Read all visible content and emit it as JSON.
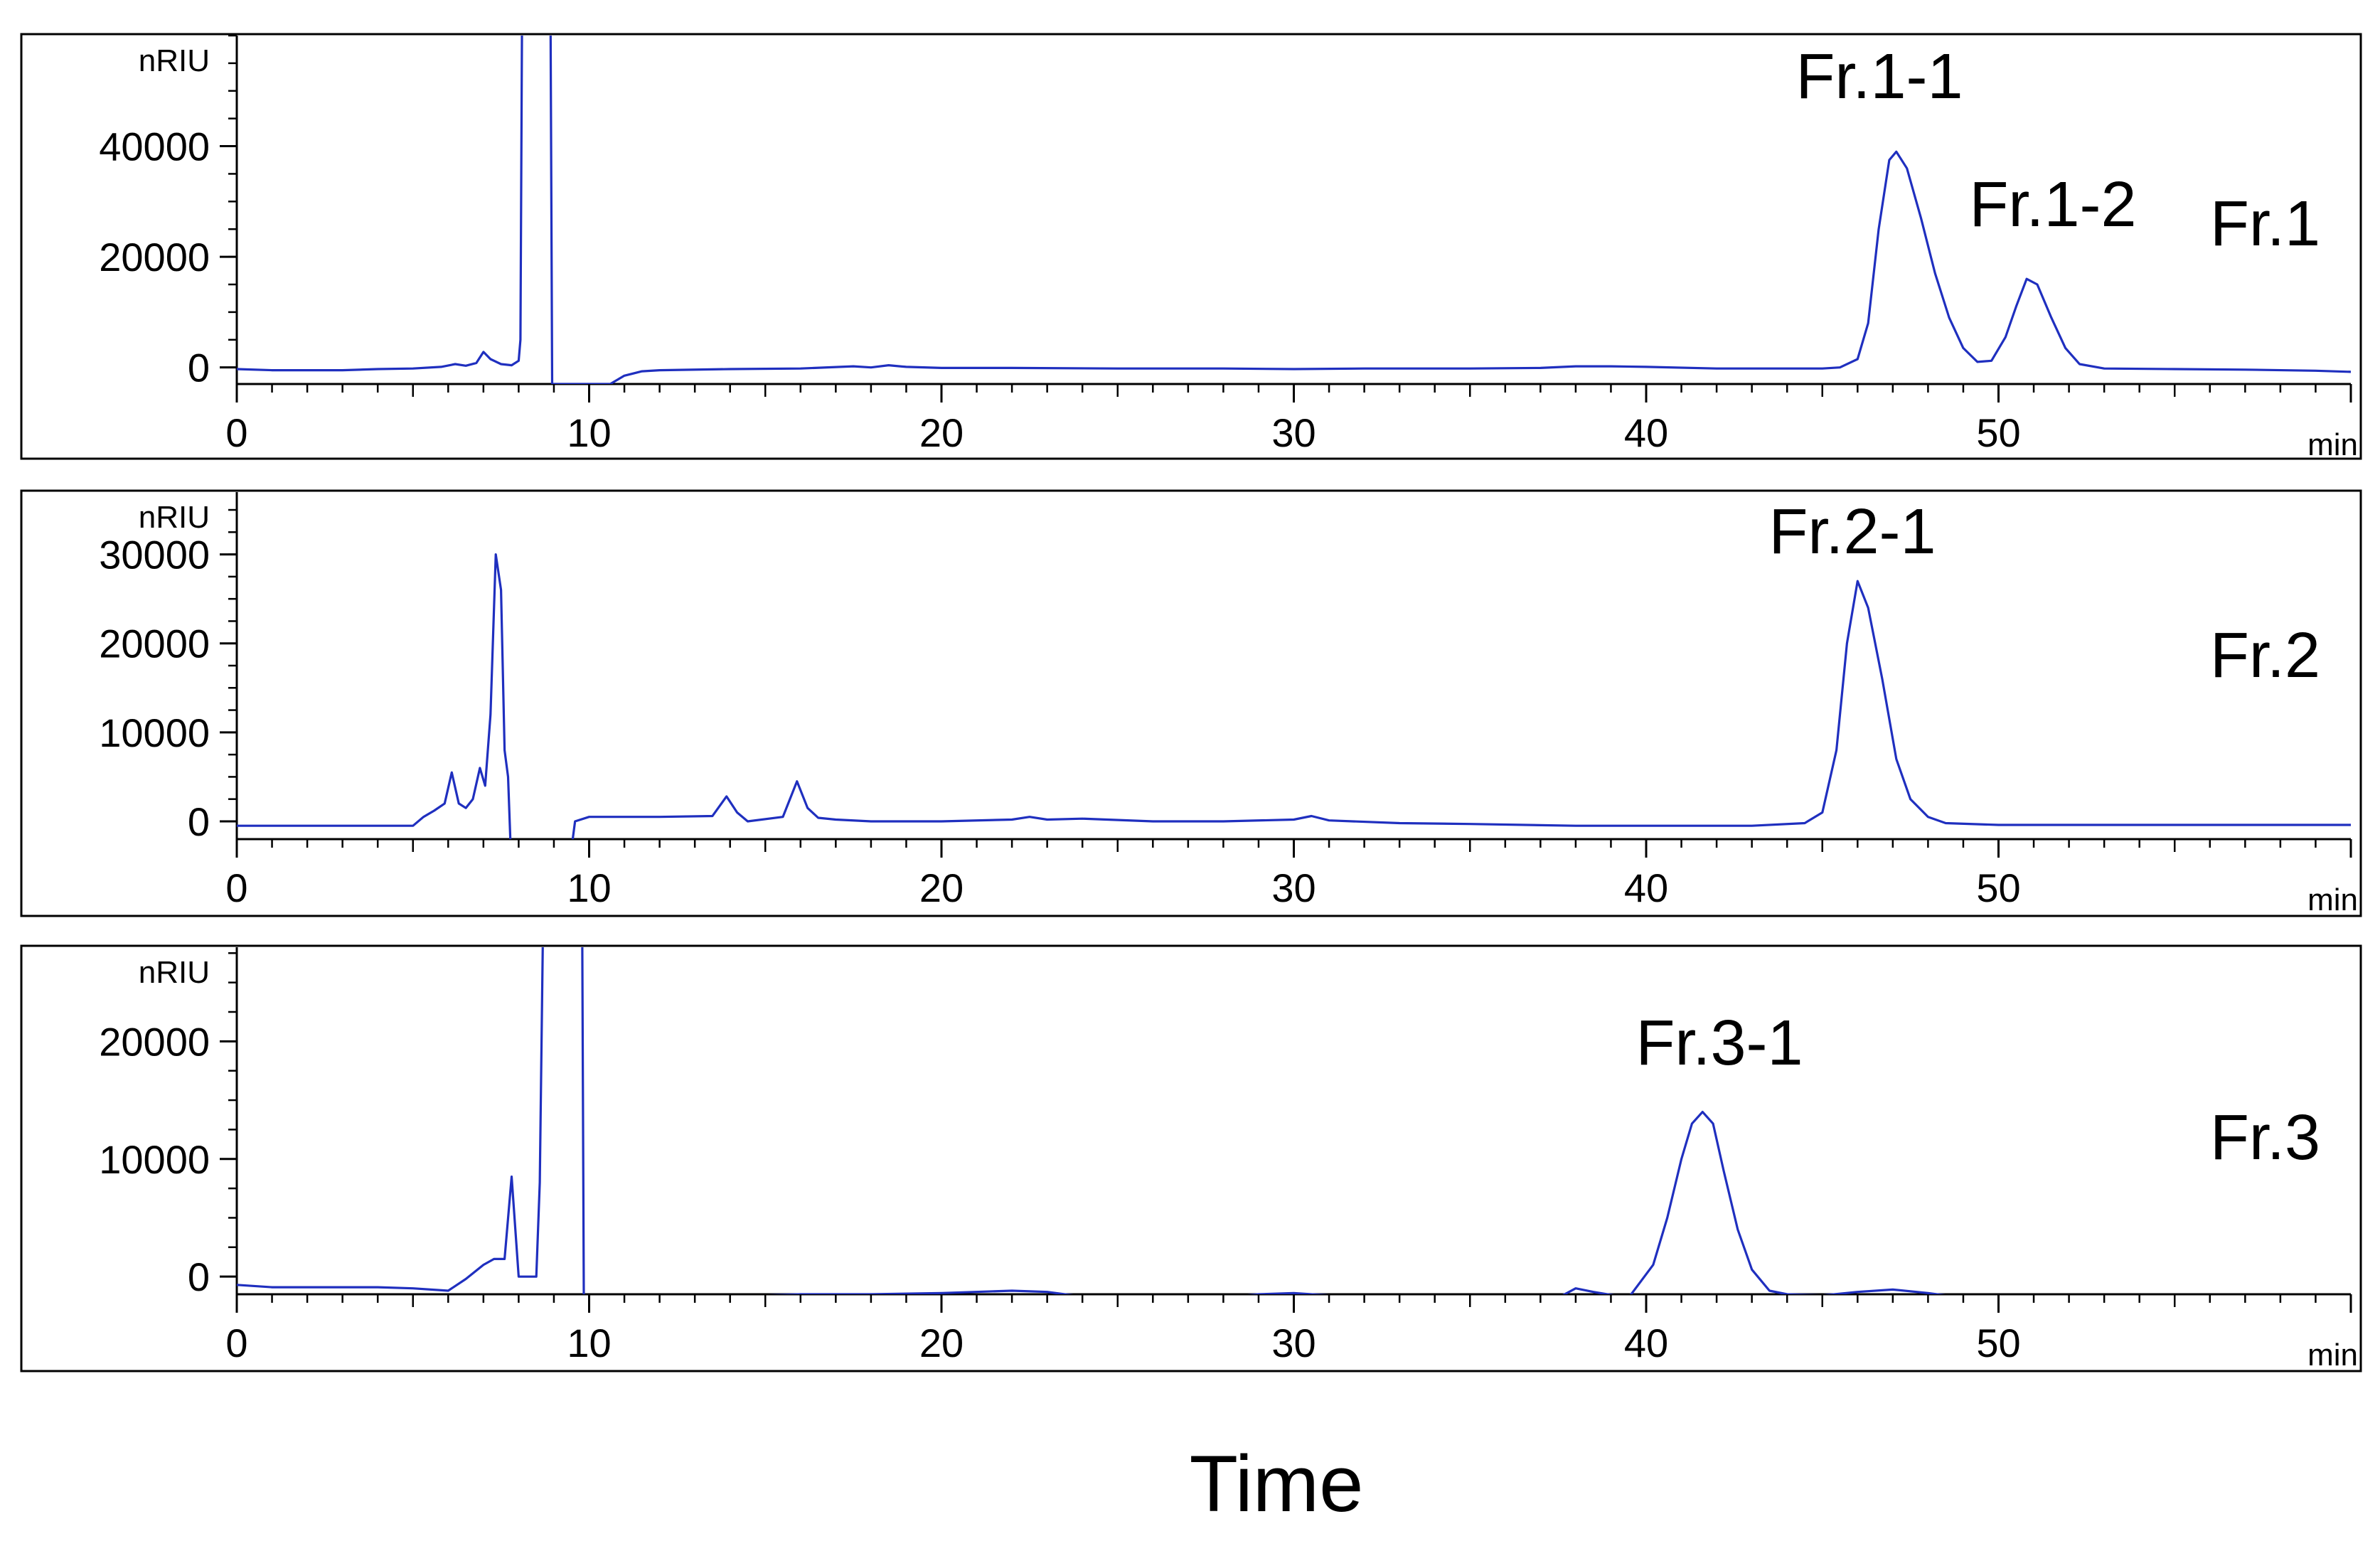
{
  "figure": {
    "xlabel": "Time"
  },
  "colors": {
    "trace": "#1f2fbf",
    "axis": "#000000",
    "frame": "#000000"
  },
  "chart_data": [
    {
      "type": "line",
      "panel_label": "Fr.1",
      "y_unit": "nRIU",
      "x_unit": "min",
      "xlim": [
        0,
        60
      ],
      "ylim": [
        -3000,
        60000
      ],
      "xticks": [
        0,
        10,
        20,
        30,
        40,
        50
      ],
      "yticks": [
        0,
        20000,
        40000
      ],
      "peaks": [
        {
          "label": "Fr.1-1",
          "x": 47.0,
          "y": 39000
        },
        {
          "label": "Fr.1-2",
          "x": 50.7,
          "y": 16000
        }
      ],
      "series": [
        {
          "x": [
            0,
            1,
            3,
            4,
            5,
            5.8,
            6.2,
            6.5,
            6.8,
            7.0,
            7.2,
            7.5,
            7.8,
            8.0,
            8.05,
            8.1,
            8.2,
            8.4,
            8.6,
            8.8,
            8.9,
            8.95,
            9.0,
            9.1,
            9.5,
            10,
            10.6,
            11.0,
            11.5,
            12,
            14,
            16,
            17.5,
            18,
            18.5,
            19,
            20,
            22,
            25,
            28,
            30,
            32,
            35,
            37,
            38,
            39,
            40,
            42,
            44,
            45,
            45.5,
            46,
            46.3,
            46.6,
            46.9,
            47.1,
            47.4,
            47.8,
            48.2,
            48.6,
            49.0,
            49.4,
            49.8,
            50.2,
            50.5,
            50.8,
            51.1,
            51.5,
            51.9,
            52.3,
            53,
            55,
            57,
            59,
            60
          ],
          "y": [
            -300,
            -500,
            -500,
            -300,
            -200,
            100,
            600,
            300,
            800,
            2800,
            1500,
            600,
            400,
            1200,
            5000,
            70000,
            70000,
            70000,
            70000,
            70000,
            70000,
            -3000,
            -3000,
            -3000,
            -3000,
            -3000,
            -3000,
            -1500,
            -700,
            -500,
            -300,
            -200,
            200,
            0,
            400,
            100,
            -100,
            -100,
            -200,
            -200,
            -300,
            -200,
            -200,
            -100,
            200,
            200,
            100,
            -200,
            -200,
            -200,
            0,
            1500,
            8000,
            25000,
            37500,
            39000,
            36000,
            27000,
            17000,
            9000,
            3500,
            1000,
            1200,
            5500,
            11000,
            16000,
            15000,
            9000,
            3500,
            600,
            -200,
            -300,
            -400,
            -600,
            -800
          ]
        }
      ]
    },
    {
      "type": "line",
      "panel_label": "Fr.2",
      "y_unit": "nRIU",
      "x_unit": "min",
      "xlim": [
        0,
        60
      ],
      "ylim": [
        -2000,
        37000
      ],
      "xticks": [
        0,
        10,
        20,
        30,
        40,
        50
      ],
      "yticks": [
        0,
        10000,
        20000,
        30000
      ],
      "peaks": [
        {
          "label": "Fr.2-1",
          "x": 46.0,
          "y": 27000
        }
      ],
      "series": [
        {
          "x": [
            0,
            2,
            4,
            5,
            5.3,
            5.6,
            5.9,
            6.1,
            6.3,
            6.5,
            6.7,
            6.9,
            7.05,
            7.2,
            7.35,
            7.5,
            7.6,
            7.7,
            7.8,
            7.95,
            8.1,
            8.5,
            9,
            9.4,
            9.6,
            10,
            12,
            13.5,
            13.9,
            14.2,
            14.5,
            15.5,
            15.9,
            16.2,
            16.5,
            17,
            18,
            20,
            22,
            22.5,
            23,
            24,
            26,
            28,
            30,
            30.5,
            31,
            33,
            35,
            38,
            40,
            43,
            44.5,
            45,
            45.4,
            45.7,
            46.0,
            46.3,
            46.7,
            47.1,
            47.5,
            48.0,
            48.5,
            50,
            52,
            55,
            58,
            60
          ],
          "y": [
            -500,
            -500,
            -500,
            -500,
            500,
            1200,
            2000,
            5500,
            2000,
            1500,
            2500,
            6000,
            4000,
            12000,
            30000,
            26000,
            8000,
            5000,
            -6000,
            -6000,
            -6000,
            -6000,
            -6000,
            -6000,
            0,
            500,
            500,
            600,
            2800,
            1000,
            0,
            500,
            4500,
            1500,
            400,
            200,
            0,
            0,
            200,
            500,
            200,
            300,
            0,
            0,
            200,
            600,
            100,
            -200,
            -300,
            -500,
            -500,
            -500,
            -200,
            1000,
            8000,
            20000,
            27000,
            24000,
            16000,
            7000,
            2500,
            500,
            -200,
            -400,
            -400,
            -400,
            -400,
            -400
          ]
        }
      ]
    },
    {
      "type": "line",
      "panel_label": "Fr.3",
      "y_unit": "nRIU",
      "x_unit": "min",
      "xlim": [
        0,
        60
      ],
      "ylim": [
        -1500,
        28000
      ],
      "xticks": [
        0,
        10,
        20,
        30,
        40,
        50
      ],
      "yticks": [
        0,
        10000,
        20000
      ],
      "peaks": [
        {
          "label": "Fr.3-1",
          "x": 41.6,
          "y": 14000
        }
      ],
      "series": [
        {
          "x": [
            0,
            1,
            3,
            4,
            5,
            6,
            6.5,
            7,
            7.3,
            7.6,
            7.8,
            8.0,
            8.2,
            8.5,
            8.6,
            8.7,
            9.0,
            9.3,
            9.6,
            9.8,
            9.85,
            10,
            11,
            12,
            12.6,
            13.0,
            13.5,
            14,
            15,
            16,
            18,
            20,
            22,
            23,
            24,
            25,
            26,
            28,
            29,
            30,
            32,
            34,
            36,
            37.5,
            38,
            38.5,
            39.5,
            40.2,
            40.6,
            41.0,
            41.3,
            41.6,
            41.9,
            42.2,
            42.6,
            43.0,
            43.5,
            44,
            45,
            46,
            47,
            48,
            49,
            52,
            55,
            58,
            60
          ],
          "y": [
            -700,
            -900,
            -900,
            -900,
            -1000,
            -1200,
            -200,
            1000,
            1500,
            1500,
            8500,
            0,
            0,
            0,
            8000,
            32000,
            32000,
            32000,
            32000,
            32000,
            -3000,
            -3000,
            -3000,
            -3000,
            -3000,
            -2500,
            -1800,
            -1700,
            -1600,
            -1500,
            -1500,
            -1400,
            -1200,
            -1300,
            -1700,
            -2000,
            -2000,
            -1800,
            -1500,
            -1400,
            -1800,
            -1800,
            -1800,
            -1800,
            -1000,
            -1300,
            -1800,
            1000,
            5000,
            10000,
            13000,
            14000,
            13000,
            9000,
            4000,
            600,
            -1200,
            -1500,
            -1600,
            -1300,
            -1100,
            -1400,
            -1800,
            -1800,
            -1800,
            -1800,
            -1800
          ]
        }
      ]
    }
  ]
}
